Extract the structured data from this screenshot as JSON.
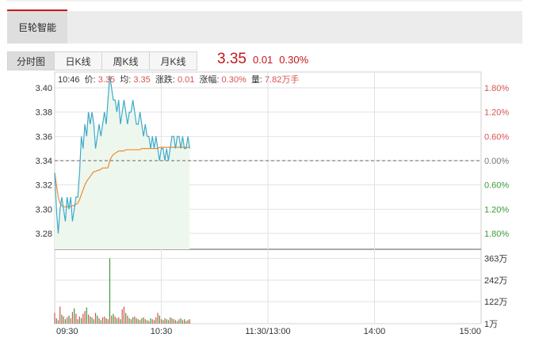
{
  "stock": {
    "name": "巨轮智能"
  },
  "tabs": [
    {
      "label": "分时图",
      "active": true
    },
    {
      "label": "日K线",
      "active": false
    },
    {
      "label": "周K线",
      "active": false
    },
    {
      "label": "月K线",
      "active": false
    }
  ],
  "quote": {
    "price": "3.35",
    "change": "0.01",
    "change_pct": "0.30%"
  },
  "info_bar": {
    "time": "10:46",
    "price_label": "价:",
    "price": "3.35",
    "avg_label": "均:",
    "avg": "3.35",
    "change_label": "涨跌:",
    "change": "0.01",
    "pct_label": "涨幅:",
    "pct": "0.30%",
    "volume_label": "量:",
    "volume": "7.82万手"
  },
  "colors": {
    "up": "#d9534f",
    "down": "#3a9a3a",
    "price_line": "#3fa9c9",
    "avg_line": "#ef8b2c",
    "fill": "#eef7ee",
    "grid": "#e2e2e2"
  },
  "chart_data": {
    "type": "line",
    "x_ticks": [
      "09:30",
      "10:30",
      "11:30/13:00",
      "14:00",
      "15:00"
    ],
    "y_ticks": [
      "3.40",
      "3.38",
      "3.36",
      "3.34",
      "3.32",
      "3.30",
      "3.28"
    ],
    "y_tick_values": [
      3.4,
      3.38,
      3.36,
      3.34,
      3.32,
      3.3,
      3.28
    ],
    "pct_ticks": [
      {
        "label": "1.80%",
        "trend": "up"
      },
      {
        "label": "1.20%",
        "trend": "up"
      },
      {
        "label": "0.60%",
        "trend": "up"
      },
      {
        "label": "0.00%",
        "trend": "flat"
      },
      {
        "label": "0.60%",
        "trend": "down"
      },
      {
        "label": "1.20%",
        "trend": "down"
      },
      {
        "label": "1.80%",
        "trend": "down"
      }
    ],
    "volume_ticks": [
      "363万",
      "242万",
      "122万",
      "1万"
    ],
    "volume_tick_values": [
      363,
      242,
      122,
      1
    ],
    "ylim": [
      3.267,
      3.413
    ],
    "prev_close": 3.34,
    "session_minutes": 240,
    "price_series": [
      3.33,
      3.3,
      3.28,
      3.3,
      3.31,
      3.3,
      3.29,
      3.31,
      3.3,
      3.31,
      3.29,
      3.3,
      3.31,
      3.31,
      3.33,
      3.36,
      3.35,
      3.37,
      3.36,
      3.38,
      3.37,
      3.38,
      3.37,
      3.35,
      3.36,
      3.37,
      3.36,
      3.37,
      3.38,
      3.37,
      3.39,
      3.41,
      3.4,
      3.39,
      3.39,
      3.38,
      3.39,
      3.37,
      3.38,
      3.39,
      3.38,
      3.37,
      3.38,
      3.38,
      3.39,
      3.38,
      3.37,
      3.37,
      3.38,
      3.37,
      3.36,
      3.37,
      3.36,
      3.36,
      3.35,
      3.36,
      3.35,
      3.36,
      3.35,
      3.34,
      3.35,
      3.35,
      3.34,
      3.35,
      3.34,
      3.35,
      3.36,
      3.36,
      3.35,
      3.36,
      3.36,
      3.35,
      3.36,
      3.35,
      3.35,
      3.36,
      3.35
    ],
    "avg_series": [
      3.33,
      3.32,
      3.31,
      3.305,
      3.303,
      3.302,
      3.302,
      3.302,
      3.302,
      3.302,
      3.303,
      3.303,
      3.304,
      3.305,
      3.308,
      3.312,
      3.316,
      3.32,
      3.323,
      3.325,
      3.327,
      3.329,
      3.331,
      3.331,
      3.332,
      3.332,
      3.333,
      3.334,
      3.334,
      3.334,
      3.334,
      3.34,
      3.343,
      3.345,
      3.346,
      3.347,
      3.348,
      3.348,
      3.348,
      3.348,
      3.349,
      3.349,
      3.349,
      3.349,
      3.349,
      3.349,
      3.349,
      3.349,
      3.349,
      3.35,
      3.35,
      3.35,
      3.35,
      3.35,
      3.35,
      3.35,
      3.35,
      3.35,
      3.35,
      3.351,
      3.351,
      3.351,
      3.351,
      3.351,
      3.351,
      3.351,
      3.351,
      3.351,
      3.351,
      3.351,
      3.351,
      3.351,
      3.351,
      3.351,
      3.351,
      3.351,
      3.351
    ],
    "volume_series": [
      60,
      30,
      20,
      95,
      50,
      40,
      25,
      35,
      45,
      30,
      65,
      85,
      55,
      25,
      40,
      30,
      55,
      70,
      90,
      50,
      40,
      35,
      25,
      60,
      45,
      30,
      20,
      35,
      40,
      30,
      25,
      363,
      45,
      55,
      40,
      30,
      35,
      25,
      80,
      95,
      60,
      45,
      30,
      25,
      35,
      40,
      30,
      25,
      20,
      30,
      35,
      25,
      20,
      15,
      30,
      25,
      20,
      35,
      60,
      45,
      25,
      20,
      30,
      25,
      20,
      35,
      30,
      25,
      20,
      15,
      25,
      30,
      20,
      25,
      15,
      20,
      25
    ],
    "volume_trend": [
      "u",
      "d",
      "u",
      "u",
      "d",
      "u",
      "d",
      "u",
      "d",
      "u",
      "u",
      "d",
      "u",
      "d",
      "u",
      "d",
      "u",
      "u",
      "d",
      "u",
      "d",
      "u",
      "d",
      "u",
      "d",
      "u",
      "d",
      "u",
      "u",
      "d",
      "u",
      "d",
      "u",
      "d",
      "u",
      "d",
      "u",
      "d",
      "u",
      "u",
      "d",
      "u",
      "d",
      "u",
      "d",
      "u",
      "d",
      "u",
      "d",
      "u",
      "d",
      "u",
      "d",
      "u",
      "d",
      "u",
      "d",
      "u",
      "u",
      "d",
      "u",
      "d",
      "u",
      "d",
      "u",
      "d",
      "u",
      "d",
      "u",
      "d",
      "u",
      "d",
      "u",
      "d",
      "u",
      "d",
      "u"
    ],
    "grid": true
  }
}
